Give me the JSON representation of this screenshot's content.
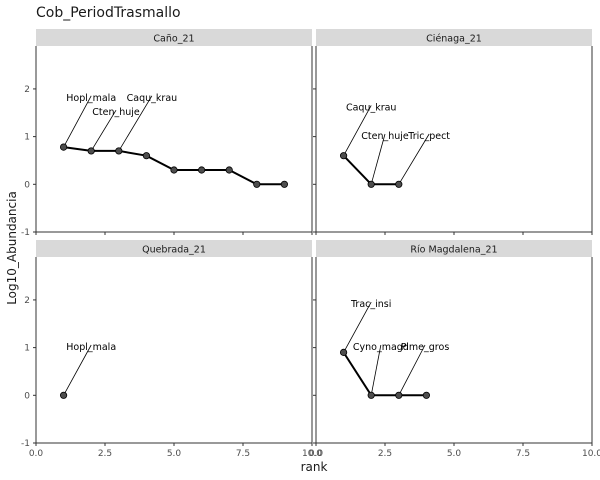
{
  "chart_data": {
    "type": "line",
    "title": "Cob_PeriodTrasmallo",
    "xlabel": "rank",
    "ylabel": "Log10_Abundancia",
    "xlim": [
      0,
      10
    ],
    "ylim": [
      -1,
      2.9
    ],
    "x_ticks": [
      0,
      2.5,
      5,
      7.5,
      10
    ],
    "x_tick_labels": [
      "0.0",
      "2.5",
      "5.0",
      "7.5",
      "10.0"
    ],
    "y_ticks": [
      -1,
      0,
      1,
      2
    ],
    "y_tick_labels": [
      "-1",
      "0",
      "1",
      "2"
    ],
    "grid": false,
    "colors": {
      "strip": "#d9d9d9",
      "line": "#000000",
      "point": "#4d4d4d"
    },
    "panels": [
      {
        "strip": "Caño_21",
        "x": [
          1,
          2,
          3,
          4,
          5,
          6,
          7,
          8,
          9
        ],
        "y": [
          0.78,
          0.7,
          0.7,
          0.6,
          0.3,
          0.3,
          0.3,
          0.0,
          0.0
        ],
        "labels": [
          {
            "text": "Hopl_mala",
            "x": 1,
            "y": 0.78,
            "label_x": 2.0,
            "label_y": 1.75
          },
          {
            "text": "Cten_huje",
            "x": 2,
            "y": 0.7,
            "label_x": 2.9,
            "label_y": 1.45
          },
          {
            "text": "Caqu_krau",
            "x": 3,
            "y": 0.7,
            "label_x": 4.2,
            "label_y": 1.75
          }
        ]
      },
      {
        "strip": "Ciénaga_21",
        "x": [
          1,
          2,
          3
        ],
        "y": [
          0.6,
          0.0,
          0.0
        ],
        "labels": [
          {
            "text": "Caqu_krau",
            "x": 1,
            "y": 0.6,
            "label_x": 2.0,
            "label_y": 1.55
          },
          {
            "text": "Cten_huje",
            "x": 2,
            "y": 0.0,
            "label_x": 2.5,
            "label_y": 0.95
          },
          {
            "text": "Tric_pect",
            "x": 3,
            "y": 0.0,
            "label_x": 4.1,
            "label_y": 0.95
          }
        ]
      },
      {
        "strip": "Quebrada_21",
        "x": [
          1
        ],
        "y": [
          0.0
        ],
        "labels": [
          {
            "text": "Hopl_mala",
            "x": 1,
            "y": 0.0,
            "label_x": 2.0,
            "label_y": 0.95
          }
        ]
      },
      {
        "strip": "Río Magdalena_21",
        "x": [
          1,
          2,
          3,
          4
        ],
        "y": [
          0.9,
          0.0,
          0.0,
          0.0
        ],
        "labels": [
          {
            "text": "Trac_insi",
            "x": 1,
            "y": 0.9,
            "label_x": 2.0,
            "label_y": 1.85
          },
          {
            "text": "Cyno_magd",
            "x": 2,
            "y": 0.0,
            "label_x": 2.35,
            "label_y": 0.95
          },
          {
            "text": "Pime_gros",
            "x": 3,
            "y": 0.0,
            "label_x": 3.95,
            "label_y": 0.95
          }
        ]
      }
    ]
  }
}
